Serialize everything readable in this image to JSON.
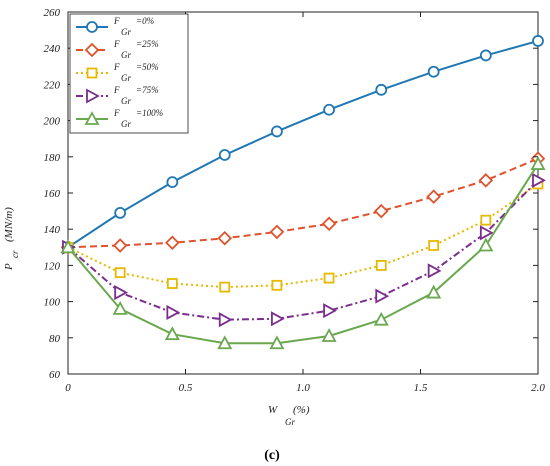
{
  "chart_data": {
    "type": "line",
    "caption": "(c)",
    "xlabel": {
      "symbol": "W",
      "subscript": "Gr",
      "unit": "(%)"
    },
    "ylabel": {
      "symbol": "P",
      "subscript": "cr",
      "unit": "(MN/m)"
    },
    "xlim": [
      0,
      2.0
    ],
    "ylim": [
      60,
      260
    ],
    "xticks": [
      0,
      0.5,
      1.0,
      1.5,
      2.0
    ],
    "xtick_labels": [
      "0",
      "0.5",
      "1.0",
      "1.5",
      "2.0"
    ],
    "yticks": [
      60,
      80,
      100,
      120,
      140,
      160,
      180,
      200,
      220,
      240,
      260
    ],
    "ytick_labels": [
      "60",
      "80",
      "100",
      "120",
      "140",
      "160",
      "180",
      "200",
      "220",
      "240",
      "260"
    ],
    "grid": false,
    "legend_position": "top-left",
    "x": [
      0,
      0.222,
      0.444,
      0.667,
      0.889,
      1.111,
      1.333,
      1.556,
      1.778,
      2.0
    ],
    "series": [
      {
        "symbol": "F",
        "subscript": "Gr",
        "suffix": "=0%",
        "color": "#1f77b4",
        "marker": "circle",
        "dash": "solid",
        "values": [
          130,
          149,
          166,
          181,
          194,
          206,
          217,
          227,
          236,
          244
        ]
      },
      {
        "symbol": "F",
        "subscript": "Gr",
        "suffix": "=25%",
        "color": "#e0522b",
        "marker": "diamond",
        "dash": "dashed",
        "values": [
          130,
          131,
          132.5,
          135,
          138.5,
          143,
          150,
          158,
          167,
          179
        ]
      },
      {
        "symbol": "F",
        "subscript": "Gr",
        "suffix": "=50%",
        "color": "#e6b800",
        "marker": "square",
        "dash": "dotted",
        "values": [
          130,
          116,
          110,
          108,
          109,
          113,
          120,
          131,
          145,
          165
        ]
      },
      {
        "symbol": "F",
        "subscript": "Gr",
        "suffix": "=75%",
        "color": "#7b2d8e",
        "marker": "triangle-right",
        "dash": "dashdot",
        "values": [
          130,
          105,
          94,
          90,
          90.5,
          95,
          103,
          117,
          138,
          167
        ]
      },
      {
        "symbol": "F",
        "subscript": "Gr",
        "suffix": "=100%",
        "color": "#6aa84f",
        "marker": "triangle-up",
        "dash": "solid",
        "values": [
          130,
          96,
          82,
          77,
          77,
          81,
          90,
          105,
          131,
          176
        ]
      }
    ]
  }
}
